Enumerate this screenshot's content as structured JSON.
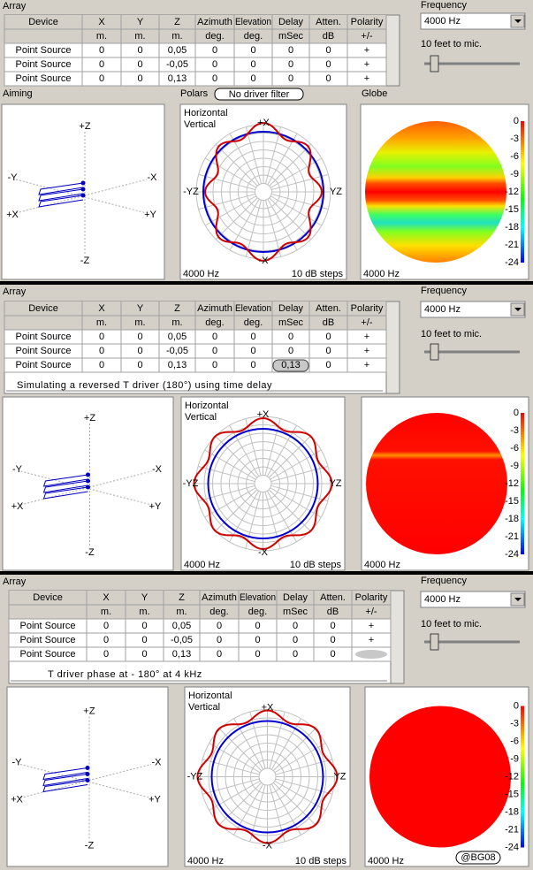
{
  "panels": [
    {
      "array_label": "Array",
      "table": {
        "headers": [
          "Device",
          "X",
          "Y",
          "Z",
          "Azimuth",
          "Elevation",
          "Delay",
          "Atten.",
          "Polarity"
        ],
        "units": [
          "m.",
          "m.",
          "m.",
          "deg.",
          "deg.",
          "mSec",
          "dB",
          "+/-"
        ],
        "rows": [
          [
            "Point Source",
            "0",
            "0",
            "0,05",
            "0",
            "0",
            "0",
            "0",
            "+"
          ],
          [
            "Point Source",
            "0",
            "0",
            "-0,05",
            "0",
            "0",
            "0",
            "0",
            "+"
          ],
          [
            "Point Source",
            "0",
            "0",
            "0,13",
            "0",
            "0",
            "0",
            "0",
            "+"
          ]
        ]
      },
      "frequency_label": "Frequency",
      "frequency_value": "4000 Hz",
      "distance_label": "10 feet to mic.",
      "aiming_label": "Aiming",
      "polars_label": "Polars",
      "filter_button": "No driver filter",
      "globe_label": "Globe",
      "aiming_axes": [
        "+Z",
        "-Z",
        "-Y",
        "-X",
        "+X",
        "+Y"
      ],
      "polar": {
        "legend": [
          "Horizontal",
          "Vertical"
        ],
        "axis_labels": [
          "+X",
          "-X",
          "-YZ",
          "YZ"
        ],
        "frequency": "4000 Hz",
        "steps": "10 dB steps"
      },
      "globe": {
        "frequency": "4000 Hz",
        "scale": [
          "0",
          "-3",
          "-6",
          "-9",
          "-12",
          "-15",
          "-18",
          "-21",
          "-24"
        ]
      }
    },
    {
      "array_label": "Array",
      "table": {
        "headers": [
          "Device",
          "X",
          "Y",
          "Z",
          "Azimuth",
          "Elevation",
          "Delay",
          "Atten.",
          "Polarity"
        ],
        "units": [
          "m.",
          "m.",
          "m.",
          "deg.",
          "deg.",
          "mSec",
          "dB",
          "+/-"
        ],
        "rows": [
          [
            "Point Source",
            "0",
            "0",
            "0,05",
            "0",
            "0",
            "0",
            "0",
            "+"
          ],
          [
            "Point Source",
            "0",
            "0",
            "-0,05",
            "0",
            "0",
            "0",
            "0",
            "+"
          ],
          [
            "Point Source",
            "0",
            "0",
            "0,13",
            "0",
            "0",
            "0,13",
            "0",
            "+"
          ]
        ]
      },
      "note": "Simulating a reversed T driver (180°)  using time delay",
      "frequency_label": "Frequency",
      "frequency_value": "4000 Hz",
      "distance_label": "10 feet to mic.",
      "aiming_axes": [
        "+Z",
        "-Z",
        "-Y",
        "-X",
        "+X",
        "+Y"
      ],
      "polar": {
        "legend": [
          "Horizontal",
          "Vertical"
        ],
        "axis_labels": [
          "+X",
          "-X",
          "-YZ",
          "YZ"
        ],
        "frequency": "4000 Hz",
        "steps": "10 dB steps"
      },
      "globe": {
        "frequency": "4000 Hz",
        "scale": [
          "0",
          "-3",
          "-6",
          "-9",
          "-12",
          "-15",
          "-18",
          "-21",
          "-24"
        ]
      }
    },
    {
      "array_label": "Array",
      "table": {
        "headers": [
          "Device",
          "X",
          "Y",
          "Z",
          "Azimuth",
          "Elevation",
          "Delay",
          "Atten.",
          "Polarity"
        ],
        "units": [
          "m.",
          "m.",
          "m.",
          "deg.",
          "deg.",
          "mSec",
          "dB",
          "+/-"
        ],
        "rows": [
          [
            "Point Source",
            "0",
            "0",
            "0,05",
            "0",
            "0",
            "0",
            "0",
            "+"
          ],
          [
            "Point Source",
            "0",
            "0",
            "-0,05",
            "0",
            "0",
            "0",
            "0",
            "+"
          ],
          [
            "Point Source",
            "0",
            "0",
            "0,13",
            "0",
            "0",
            "0",
            "0",
            null
          ]
        ]
      },
      "note": "T driver phase at - 180°   at 4 kHz",
      "frequency_label": "Frequency",
      "frequency_value": "4000 Hz",
      "distance_label": "10 feet to mic.",
      "aiming_axes": [
        "+Z",
        "-Z",
        "-Y",
        "-X",
        "+X",
        "+Y"
      ],
      "polar": {
        "legend": [
          "Horizontal",
          "Vertical"
        ],
        "axis_labels": [
          "+X",
          "-X",
          "-YZ",
          "YZ"
        ],
        "frequency": "4000 Hz",
        "steps": "10 dB steps"
      },
      "globe": {
        "frequency": "4000 Hz",
        "scale": [
          "0",
          "-3",
          "-6",
          "-9",
          "-12",
          "-15",
          "-18",
          "-21",
          "-24"
        ]
      }
    }
  ],
  "watermark": "@BG08"
}
